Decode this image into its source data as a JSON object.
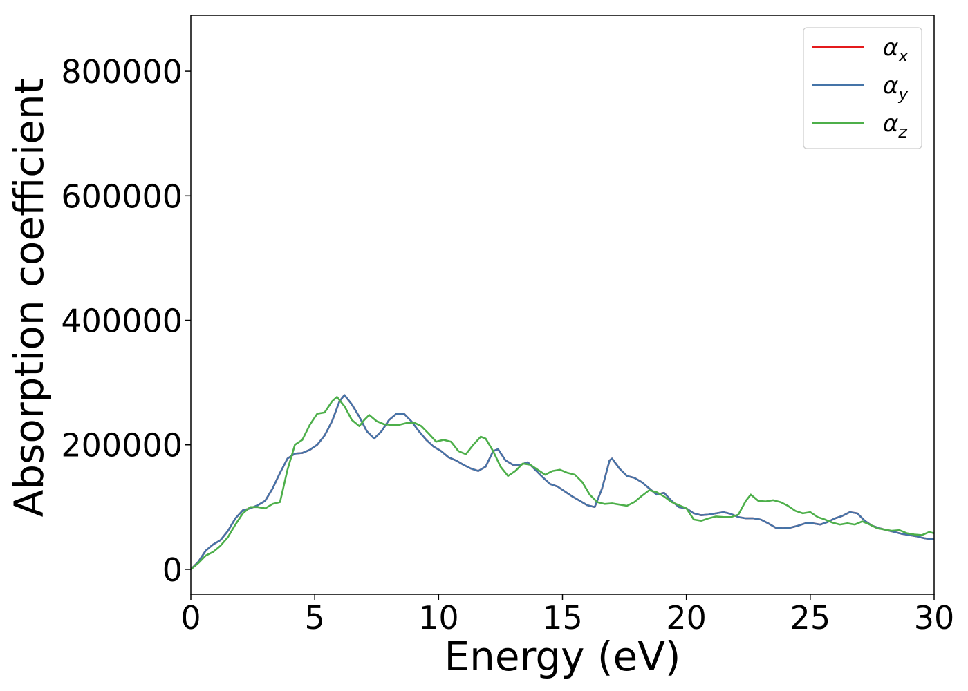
{
  "chart_data": {
    "type": "line",
    "title": "",
    "xlabel": "Energy (eV)",
    "ylabel": "Absorption coefficient",
    "xlim": [
      0,
      30
    ],
    "ylim": [
      -40000,
      890000
    ],
    "xticks": [
      0,
      5,
      10,
      15,
      20,
      25,
      30
    ],
    "xtick_labels": [
      "0",
      "5",
      "10",
      "15",
      "20",
      "25",
      "30"
    ],
    "yticks": [
      0,
      200000,
      400000,
      600000,
      800000
    ],
    "ytick_labels": [
      "0",
      "200000",
      "400000",
      "600000",
      "800000"
    ],
    "grid": false,
    "legend_position": "top-right",
    "series": [
      {
        "name": "α_x",
        "legend_main": "α",
        "legend_sub": "x",
        "color": "#e41a1c",
        "x": [
          0,
          0.3,
          0.6,
          0.9,
          1.2,
          1.5,
          1.8,
          2.1,
          2.4,
          2.7,
          3.0,
          3.3,
          3.6,
          3.9,
          4.2,
          4.5,
          4.8,
          5.1,
          5.4,
          5.7,
          6.0,
          6.2,
          6.5,
          6.8,
          7.1,
          7.4,
          7.7,
          8.0,
          8.3,
          8.6,
          8.9,
          9.2,
          9.5,
          9.8,
          10.1,
          10.4,
          10.7,
          11.0,
          11.3,
          11.6,
          11.9,
          12.2,
          12.4,
          12.7,
          13.0,
          13.3,
          13.6,
          13.9,
          14.2,
          14.5,
          14.8,
          15.1,
          15.4,
          15.7,
          16.0,
          16.3,
          16.6,
          16.9,
          17.0,
          17.3,
          17.6,
          17.9,
          18.2,
          18.5,
          18.8,
          19.1,
          19.4,
          19.7,
          20.0,
          20.3,
          20.6,
          20.9,
          21.2,
          21.5,
          21.8,
          22.1,
          22.4,
          22.7,
          23.0,
          23.3,
          23.6,
          23.9,
          24.2,
          24.5,
          24.8,
          25.1,
          25.4,
          25.7,
          26.0,
          26.3,
          26.6,
          26.9,
          27.2,
          27.5,
          27.8,
          28.1,
          28.4,
          28.7,
          29.0,
          29.3,
          29.6,
          30.0
        ],
        "values": [
          0,
          12000,
          30000,
          40000,
          47000,
          62000,
          82000,
          95000,
          98000,
          103000,
          110000,
          130000,
          155000,
          178000,
          186000,
          187000,
          192000,
          200000,
          215000,
          238000,
          270000,
          280000,
          265000,
          245000,
          222000,
          210000,
          222000,
          240000,
          250000,
          250000,
          238000,
          222000,
          208000,
          197000,
          190000,
          180000,
          175000,
          168000,
          162000,
          158000,
          165000,
          190000,
          193000,
          175000,
          168000,
          168000,
          172000,
          160000,
          148000,
          137000,
          133000,
          125000,
          117000,
          110000,
          103000,
          100000,
          130000,
          175000,
          178000,
          162000,
          150000,
          147000,
          140000,
          130000,
          120000,
          123000,
          110000,
          100000,
          98000,
          90000,
          87000,
          88000,
          90000,
          92000,
          89000,
          84000,
          82000,
          82000,
          80000,
          74000,
          67000,
          66000,
          67000,
          70000,
          74000,
          74000,
          72000,
          76000,
          82000,
          86000,
          92000,
          90000,
          78000,
          70000,
          66000,
          63000,
          60000,
          57000,
          55000,
          53000,
          50000,
          48000
        ]
      },
      {
        "name": "α_y",
        "legend_main": "α",
        "legend_sub": "y",
        "color": "#4574a8",
        "x": [
          0,
          0.3,
          0.6,
          0.9,
          1.2,
          1.5,
          1.8,
          2.1,
          2.4,
          2.7,
          3.0,
          3.3,
          3.6,
          3.9,
          4.2,
          4.5,
          4.8,
          5.1,
          5.4,
          5.7,
          6.0,
          6.2,
          6.5,
          6.8,
          7.1,
          7.4,
          7.7,
          8.0,
          8.3,
          8.6,
          8.9,
          9.2,
          9.5,
          9.8,
          10.1,
          10.4,
          10.7,
          11.0,
          11.3,
          11.6,
          11.9,
          12.2,
          12.4,
          12.7,
          13.0,
          13.3,
          13.6,
          13.9,
          14.2,
          14.5,
          14.8,
          15.1,
          15.4,
          15.7,
          16.0,
          16.3,
          16.6,
          16.9,
          17.0,
          17.3,
          17.6,
          17.9,
          18.2,
          18.5,
          18.8,
          19.1,
          19.4,
          19.7,
          20.0,
          20.3,
          20.6,
          20.9,
          21.2,
          21.5,
          21.8,
          22.1,
          22.4,
          22.7,
          23.0,
          23.3,
          23.6,
          23.9,
          24.2,
          24.5,
          24.8,
          25.1,
          25.4,
          25.7,
          26.0,
          26.3,
          26.6,
          26.9,
          27.2,
          27.5,
          27.8,
          28.1,
          28.4,
          28.7,
          29.0,
          29.3,
          29.6,
          30.0
        ],
        "values": [
          0,
          12000,
          30000,
          40000,
          47000,
          62000,
          82000,
          95000,
          98000,
          103000,
          110000,
          130000,
          155000,
          178000,
          186000,
          187000,
          192000,
          200000,
          215000,
          238000,
          270000,
          280000,
          265000,
          245000,
          222000,
          210000,
          222000,
          240000,
          250000,
          250000,
          238000,
          222000,
          208000,
          197000,
          190000,
          180000,
          175000,
          168000,
          162000,
          158000,
          165000,
          190000,
          193000,
          175000,
          168000,
          168000,
          172000,
          160000,
          148000,
          137000,
          133000,
          125000,
          117000,
          110000,
          103000,
          100000,
          130000,
          175000,
          178000,
          162000,
          150000,
          147000,
          140000,
          130000,
          120000,
          123000,
          110000,
          100000,
          98000,
          90000,
          87000,
          88000,
          90000,
          92000,
          89000,
          84000,
          82000,
          82000,
          80000,
          74000,
          67000,
          66000,
          67000,
          70000,
          74000,
          74000,
          72000,
          76000,
          82000,
          86000,
          92000,
          90000,
          78000,
          70000,
          66000,
          63000,
          60000,
          57000,
          55000,
          53000,
          50000,
          48000
        ]
      },
      {
        "name": "α_z",
        "legend_main": "α",
        "legend_sub": "z",
        "color": "#4daf4a",
        "x": [
          0,
          0.3,
          0.6,
          0.9,
          1.2,
          1.5,
          1.8,
          2.1,
          2.4,
          2.7,
          3.0,
          3.3,
          3.6,
          3.9,
          4.2,
          4.5,
          4.8,
          5.1,
          5.4,
          5.7,
          5.9,
          6.2,
          6.5,
          6.8,
          7.0,
          7.2,
          7.5,
          7.8,
          8.1,
          8.4,
          8.7,
          9.0,
          9.3,
          9.6,
          9.9,
          10.2,
          10.5,
          10.8,
          11.1,
          11.4,
          11.7,
          11.9,
          12.2,
          12.5,
          12.8,
          13.1,
          13.4,
          13.7,
          14.0,
          14.3,
          14.6,
          14.9,
          15.2,
          15.5,
          15.8,
          16.1,
          16.4,
          16.7,
          17.0,
          17.3,
          17.6,
          17.9,
          18.2,
          18.5,
          18.8,
          19.1,
          19.4,
          19.7,
          20.0,
          20.3,
          20.6,
          20.9,
          21.2,
          21.5,
          21.8,
          22.1,
          22.4,
          22.6,
          22.9,
          23.2,
          23.5,
          23.8,
          24.1,
          24.4,
          24.7,
          25.0,
          25.3,
          25.6,
          25.9,
          26.2,
          26.5,
          26.8,
          27.1,
          27.4,
          27.7,
          28.0,
          28.3,
          28.6,
          28.9,
          29.2,
          29.5,
          29.8,
          30.0
        ],
        "values": [
          0,
          10000,
          22000,
          28000,
          38000,
          52000,
          72000,
          90000,
          100000,
          100000,
          98000,
          105000,
          108000,
          160000,
          200000,
          208000,
          232000,
          250000,
          252000,
          270000,
          277000,
          262000,
          240000,
          230000,
          240000,
          248000,
          238000,
          233000,
          232000,
          232000,
          235000,
          236000,
          230000,
          218000,
          205000,
          208000,
          205000,
          190000,
          185000,
          200000,
          213000,
          210000,
          190000,
          165000,
          150000,
          158000,
          170000,
          168000,
          160000,
          152000,
          158000,
          160000,
          155000,
          152000,
          140000,
          120000,
          108000,
          105000,
          106000,
          104000,
          102000,
          108000,
          118000,
          127000,
          124000,
          117000,
          108000,
          103000,
          98000,
          80000,
          78000,
          82000,
          85000,
          84000,
          84000,
          88000,
          110000,
          120000,
          110000,
          109000,
          111000,
          108000,
          102000,
          94000,
          90000,
          92000,
          84000,
          80000,
          75000,
          72000,
          74000,
          72000,
          77000,
          72000,
          66000,
          64000,
          62000,
          63000,
          58000,
          56000,
          55000,
          60000,
          58000
        ]
      }
    ]
  }
}
